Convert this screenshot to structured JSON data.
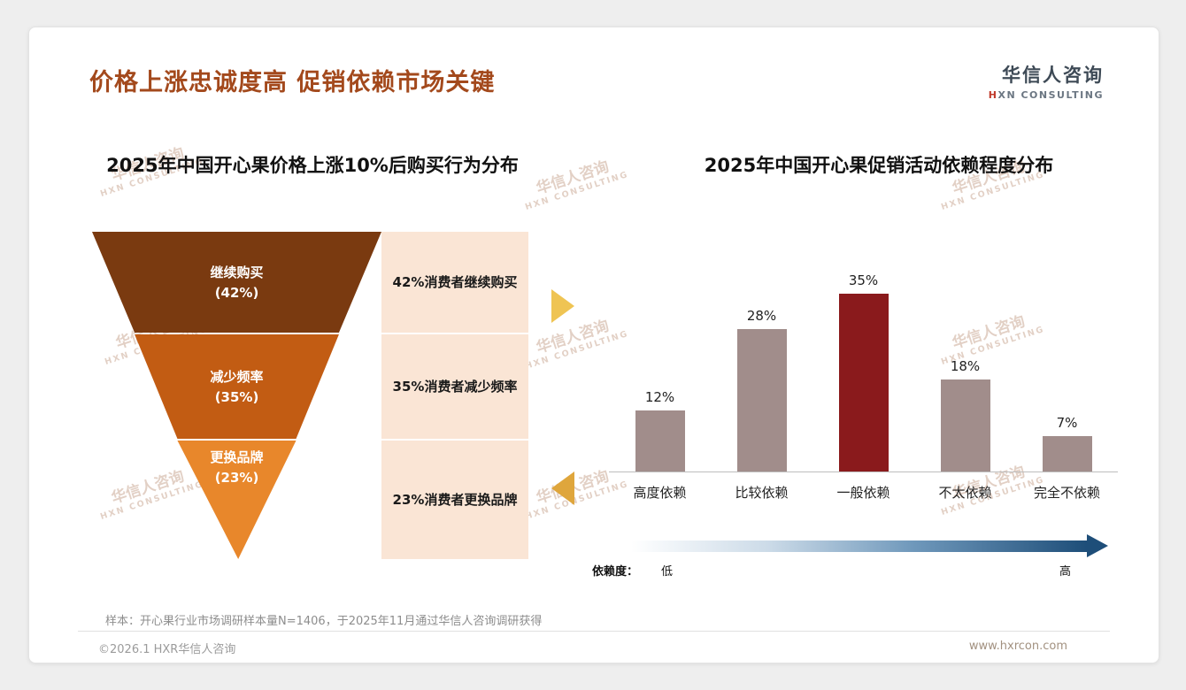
{
  "header": {
    "title": "价格上涨忠诚度高 促销依赖市场关键",
    "logo_cn": "华信人咨询",
    "logo_en_first": "H",
    "logo_en_rest": "XN CONSULTING"
  },
  "watermark": {
    "line1": "华信人咨询",
    "line2": "HXN CONSULTING"
  },
  "sample_note": "样本：开心果行业市场调研样本量N=1406，于2025年11月通过华信人咨询调研获得",
  "footer": {
    "left": "©2026.1 HXR华信人咨询",
    "right": "www.hxrcon.com"
  },
  "colors": {
    "title": "#a3491c",
    "logo_accent": "#c03a2b",
    "funnel_l1": "#7a3a10",
    "funnel_l2": "#c25c13",
    "funnel_l3": "#e8872b",
    "note_bg": "#fae5d5",
    "bar": "#a18d8b",
    "bar_highlight": "#8a1a1c",
    "arrow_gold": "#efc453",
    "arrow_amber": "#dfa63c",
    "gradient_dark": "#1e4e79"
  },
  "chart_data": [
    {
      "type": "funnel",
      "title": "2025年中国开心果价格上涨10%后购买行为分布",
      "categories": [
        "继续购买",
        "减少频率",
        "更换品牌"
      ],
      "values": [
        42,
        35,
        23
      ],
      "value_labels": [
        "(42%)",
        "(35%)",
        "(23%)"
      ],
      "annotations": [
        "42%消费者继续购买",
        "35%消费者减少频率",
        "23%消费者更换品牌"
      ]
    },
    {
      "type": "bar",
      "title": "2025年中国开心果促销活动依赖程度分布",
      "categories": [
        "高度依赖",
        "比较依赖",
        "一般依赖",
        "不太依赖",
        "完全不依赖"
      ],
      "values": [
        12,
        28,
        35,
        18,
        7
      ],
      "data_labels": [
        "12%",
        "28%",
        "35%",
        "18%",
        "7%"
      ],
      "highlight_index": 2,
      "ylim": [
        0,
        40
      ],
      "grid": false,
      "legend": false,
      "axis_note": {
        "label": "依赖度：",
        "low": "低",
        "high": "高"
      }
    }
  ]
}
